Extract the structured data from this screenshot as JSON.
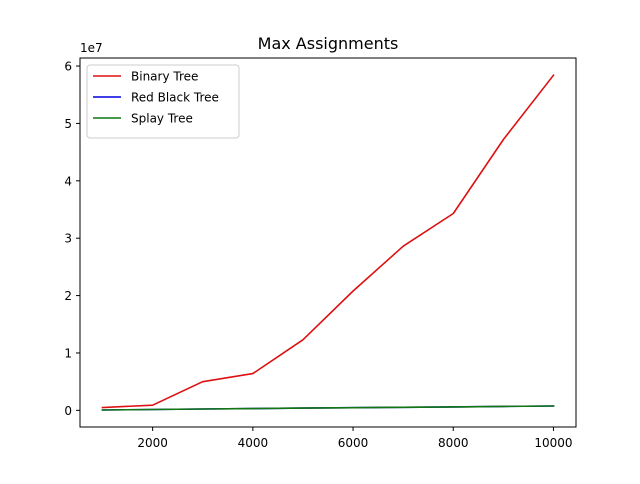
{
  "chart_data": {
    "type": "line",
    "title": "Max Assignments",
    "xlabel": "",
    "ylabel": "",
    "y_offset_label": "1e7",
    "x": [
      1000,
      2000,
      3000,
      4000,
      5000,
      6000,
      7000,
      8000,
      9000,
      10000
    ],
    "xlim": [
      550,
      10450
    ],
    "ylim": [
      -2900000,
      61400000
    ],
    "x_ticks": [
      2000,
      4000,
      6000,
      8000,
      10000
    ],
    "x_tick_labels": [
      "2000",
      "4000",
      "6000",
      "8000",
      "10000"
    ],
    "y_ticks": [
      0,
      10000000,
      20000000,
      30000000,
      40000000,
      50000000,
      60000000
    ],
    "y_tick_labels": [
      "0",
      "1",
      "2",
      "3",
      "4",
      "5",
      "6"
    ],
    "grid": false,
    "legend_position": "top-left",
    "series": [
      {
        "name": "Binary Tree",
        "color": "#dd1111",
        "values": [
          500000,
          900000,
          5000000,
          6400000,
          12300000,
          20800000,
          28600000,
          34300000,
          47200000,
          58400000
        ]
      },
      {
        "name": "Red Black Tree",
        "color": "#0000dd",
        "values": [
          60000,
          150000,
          230000,
          310000,
          390000,
          460000,
          540000,
          610000,
          690000,
          760000
        ]
      },
      {
        "name": "Splay Tree",
        "color": "#117711",
        "values": [
          60000,
          150000,
          230000,
          310000,
          390000,
          460000,
          540000,
          610000,
          690000,
          760000
        ]
      }
    ]
  }
}
